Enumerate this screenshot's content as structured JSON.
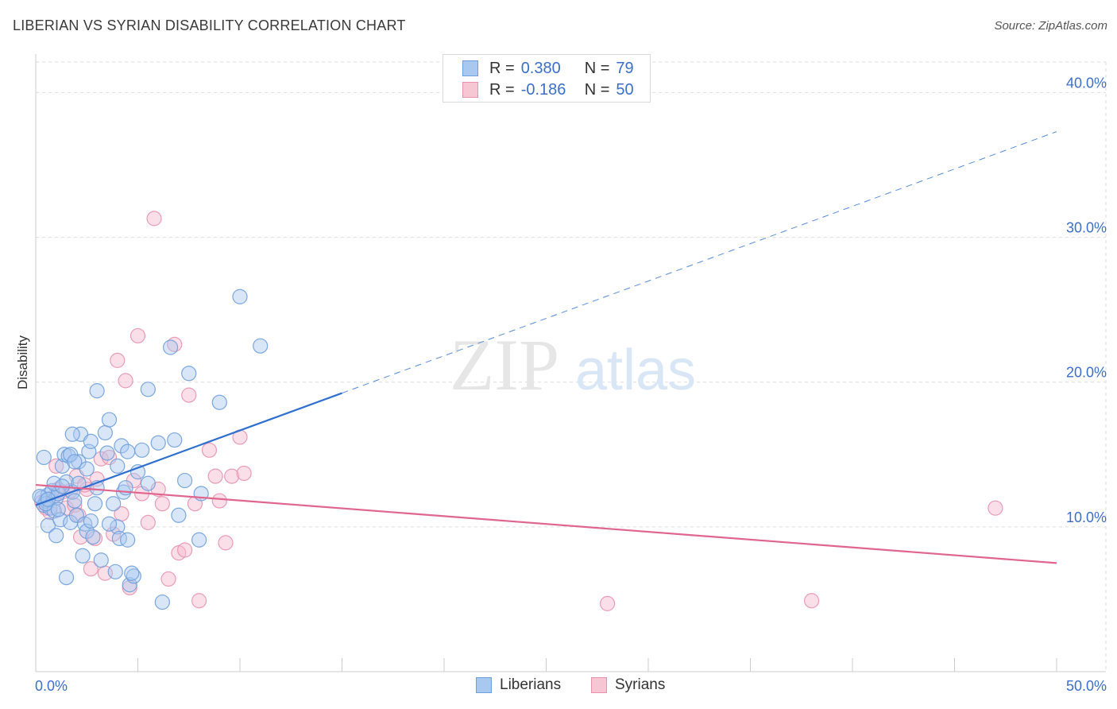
{
  "title": "LIBERIAN VS SYRIAN DISABILITY CORRELATION CHART",
  "source": "Source: ZipAtlas.com",
  "watermark": {
    "zip": "ZIP",
    "atlas": "atlas"
  },
  "legend_top": [
    {
      "r_label": "R =",
      "r_value": "0.380",
      "n_label": "N =",
      "n_value": "79"
    },
    {
      "r_label": "R =",
      "r_value": "-0.186",
      "n_label": "N =",
      "n_value": "50"
    }
  ],
  "legend_bottom": [
    "Liberians",
    "Syrians"
  ],
  "colors": {
    "liberian_fill": "#a8c8f0",
    "liberian_stroke": "#6f9fdc",
    "liberian_line": "#2f6fcf",
    "syrian_fill": "#f7b8cc",
    "syrian_stroke": "#e892ae",
    "syrian_line": "#e0658f",
    "tick_label": "#3c6fc9",
    "grid": "#dddddd"
  },
  "chart_data": {
    "type": "scatter",
    "title": "LIBERIAN VS SYRIAN DISABILITY CORRELATION CHART",
    "xlabel": "",
    "ylabel": "Disability",
    "xlim": [
      0,
      50
    ],
    "ylim": [
      0,
      42
    ],
    "x_tick_labels": [
      {
        "value": 0,
        "label": "0.0%"
      },
      {
        "value": 50,
        "label": "50.0%"
      }
    ],
    "y_tick_labels": [
      {
        "value": 10,
        "label": "10.0%"
      },
      {
        "value": 20,
        "label": "20.0%"
      },
      {
        "value": 30,
        "label": "30.0%"
      },
      {
        "value": 40,
        "label": "40.0%"
      }
    ],
    "x_minor_ticks": [
      5,
      10,
      15,
      20,
      25,
      30,
      35,
      40,
      45,
      50
    ],
    "series": [
      {
        "name": "Liberians",
        "r": 0.38,
        "n": 79,
        "trend": {
          "x": [
            0,
            50
          ],
          "y": [
            11.5,
            37.3
          ],
          "solid_until_x": 15
        },
        "points": [
          [
            0.3,
            12.0
          ],
          [
            0.4,
            11.5
          ],
          [
            0.5,
            11.8
          ],
          [
            0.6,
            12.2
          ],
          [
            0.7,
            11.3
          ],
          [
            0.8,
            12.5
          ],
          [
            0.9,
            11.1
          ],
          [
            1.0,
            12.0
          ],
          [
            1.1,
            12.3
          ],
          [
            0.4,
            14.8
          ],
          [
            0.6,
            10.1
          ],
          [
            0.9,
            13.0
          ],
          [
            1.2,
            10.5
          ],
          [
            1.3,
            14.2
          ],
          [
            1.4,
            15.0
          ],
          [
            1.5,
            13.1
          ],
          [
            1.6,
            14.9
          ],
          [
            1.7,
            10.3
          ],
          [
            1.8,
            12.4
          ],
          [
            1.9,
            11.8
          ],
          [
            2.0,
            10.8
          ],
          [
            2.1,
            14.5
          ],
          [
            2.2,
            16.4
          ],
          [
            2.3,
            8.0
          ],
          [
            2.4,
            10.2
          ],
          [
            2.5,
            9.7
          ],
          [
            2.6,
            15.2
          ],
          [
            2.7,
            15.9
          ],
          [
            2.8,
            9.3
          ],
          [
            2.9,
            11.6
          ],
          [
            3.0,
            12.7
          ],
          [
            3.2,
            7.7
          ],
          [
            3.4,
            16.5
          ],
          [
            3.6,
            17.4
          ],
          [
            3.8,
            11.6
          ],
          [
            3.9,
            6.9
          ],
          [
            4.0,
            10.0
          ],
          [
            4.1,
            9.2
          ],
          [
            4.2,
            15.6
          ],
          [
            4.3,
            12.4
          ],
          [
            4.4,
            12.7
          ],
          [
            4.5,
            9.1
          ],
          [
            4.6,
            6.0
          ],
          [
            4.8,
            6.6
          ],
          [
            5.0,
            13.8
          ],
          [
            5.5,
            13.0
          ],
          [
            6.0,
            15.8
          ],
          [
            7.0,
            10.8
          ],
          [
            7.3,
            13.2
          ],
          [
            8.0,
            9.1
          ],
          [
            1.0,
            9.4
          ],
          [
            1.5,
            6.5
          ],
          [
            2.5,
            14.0
          ],
          [
            3.0,
            19.4
          ],
          [
            4.0,
            14.2
          ],
          [
            5.5,
            19.5
          ],
          [
            6.2,
            4.8
          ],
          [
            6.8,
            16.0
          ],
          [
            7.5,
            20.6
          ],
          [
            9.0,
            18.6
          ],
          [
            11.0,
            22.5
          ],
          [
            1.8,
            16.4
          ],
          [
            3.6,
            10.2
          ],
          [
            2.7,
            10.4
          ],
          [
            0.5,
            11.6
          ],
          [
            1.3,
            12.8
          ],
          [
            1.7,
            15.0
          ],
          [
            1.9,
            14.5
          ],
          [
            2.1,
            13.0
          ],
          [
            3.5,
            15.1
          ],
          [
            4.5,
            15.2
          ],
          [
            4.7,
            6.8
          ],
          [
            5.2,
            15.3
          ],
          [
            6.6,
            22.4
          ],
          [
            8.1,
            12.3
          ],
          [
            10.0,
            25.9
          ],
          [
            0.2,
            12.1
          ],
          [
            0.6,
            11.9
          ],
          [
            1.1,
            11.2
          ]
        ]
      },
      {
        "name": "Syrians",
        "r": -0.186,
        "n": 50,
        "trend": {
          "x": [
            0,
            50
          ],
          "y": [
            12.9,
            7.5
          ]
        },
        "points": [
          [
            0.3,
            11.7
          ],
          [
            0.5,
            11.3
          ],
          [
            0.7,
            11.0
          ],
          [
            0.9,
            12.1
          ],
          [
            1.1,
            12.6
          ],
          [
            1.3,
            12.4
          ],
          [
            1.5,
            11.3
          ],
          [
            1.7,
            12.5
          ],
          [
            1.9,
            11.5
          ],
          [
            2.0,
            13.5
          ],
          [
            2.1,
            10.8
          ],
          [
            2.2,
            9.3
          ],
          [
            2.5,
            12.6
          ],
          [
            2.7,
            7.1
          ],
          [
            2.9,
            9.2
          ],
          [
            3.0,
            13.3
          ],
          [
            3.2,
            14.7
          ],
          [
            3.4,
            6.8
          ],
          [
            3.6,
            14.8
          ],
          [
            3.8,
            9.5
          ],
          [
            4.0,
            21.5
          ],
          [
            4.2,
            10.9
          ],
          [
            4.4,
            20.1
          ],
          [
            4.6,
            5.8
          ],
          [
            4.8,
            13.2
          ],
          [
            5.0,
            23.2
          ],
          [
            5.2,
            12.3
          ],
          [
            5.5,
            10.3
          ],
          [
            5.8,
            31.3
          ],
          [
            6.0,
            12.6
          ],
          [
            6.2,
            11.6
          ],
          [
            6.5,
            6.4
          ],
          [
            6.8,
            22.6
          ],
          [
            7.0,
            8.2
          ],
          [
            7.3,
            8.4
          ],
          [
            7.5,
            19.1
          ],
          [
            7.8,
            11.6
          ],
          [
            8.0,
            4.9
          ],
          [
            8.5,
            15.3
          ],
          [
            8.8,
            13.5
          ],
          [
            9.0,
            11.8
          ],
          [
            9.3,
            8.9
          ],
          [
            9.6,
            13.5
          ],
          [
            10.0,
            16.2
          ],
          [
            10.2,
            13.7
          ],
          [
            28.0,
            4.7
          ],
          [
            38.0,
            4.9
          ],
          [
            47.0,
            11.3
          ],
          [
            1.0,
            14.2
          ],
          [
            2.4,
            12.9
          ]
        ]
      }
    ]
  }
}
